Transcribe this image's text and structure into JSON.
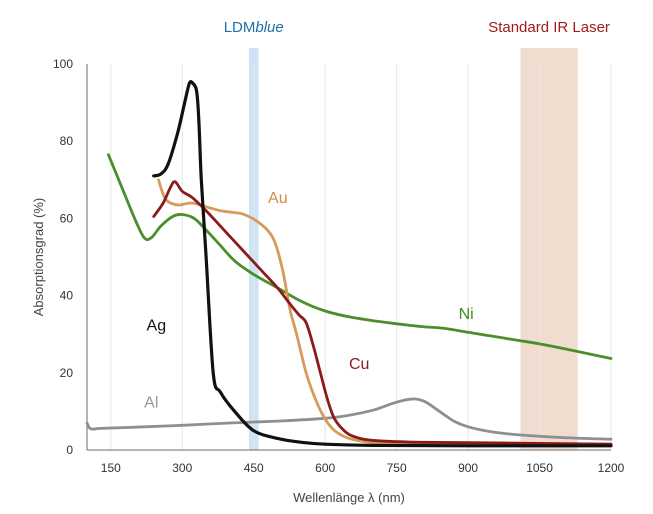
{
  "chart_data": {
    "type": "line",
    "xlabel": "Wellenlänge λ (nm)",
    "ylabel": "Absorptionsgrad (%)",
    "xlim": [
      100,
      1200
    ],
    "ylim": [
      0,
      100
    ],
    "xticks": [
      150,
      300,
      450,
      600,
      750,
      900,
      1050,
      1200
    ],
    "yticks": [
      0,
      20,
      40,
      60,
      80,
      100
    ],
    "grid": "vertical",
    "bands": [
      {
        "label_prefix": "LDM",
        "label_suffix": "blue",
        "x_from": 440,
        "x_to": 460,
        "color": "#cfe3f6",
        "label_color": "#1f6fa8"
      },
      {
        "label_prefix": "Standard IR Laser",
        "label_suffix": "",
        "x_from": 1010,
        "x_to": 1130,
        "color": "#f0ddd0",
        "label_color": "#a01b1b"
      }
    ],
    "series": [
      {
        "name": "Ag",
        "color": "#111111",
        "label_pos": [
          225,
          31
        ],
        "label_color": "#111111",
        "points": [
          [
            240,
            71
          ],
          [
            255,
            71.5
          ],
          [
            270,
            74
          ],
          [
            290,
            82
          ],
          [
            305,
            90
          ],
          [
            315,
            95
          ],
          [
            322,
            95
          ],
          [
            330,
            93
          ],
          [
            335,
            85
          ],
          [
            340,
            70
          ],
          [
            350,
            50
          ],
          [
            365,
            20
          ],
          [
            380,
            15
          ],
          [
            410,
            10
          ],
          [
            450,
            5
          ],
          [
            500,
            3
          ],
          [
            550,
            2
          ],
          [
            600,
            1.5
          ],
          [
            700,
            1.2
          ],
          [
            900,
            1.1
          ],
          [
            1200,
            1.1
          ]
        ]
      },
      {
        "name": "Au",
        "color": "#d79a5c",
        "label_pos": [
          480,
          64
        ],
        "label_color": "#d08a45",
        "points": [
          [
            250,
            70
          ],
          [
            265,
            65
          ],
          [
            290,
            63.5
          ],
          [
            320,
            64
          ],
          [
            350,
            63
          ],
          [
            380,
            62
          ],
          [
            410,
            61.5
          ],
          [
            430,
            61
          ],
          [
            460,
            59
          ],
          [
            490,
            55
          ],
          [
            510,
            47
          ],
          [
            525,
            37
          ],
          [
            540,
            30
          ],
          [
            560,
            20
          ],
          [
            580,
            13
          ],
          [
            600,
            8
          ],
          [
            620,
            5
          ],
          [
            650,
            3
          ],
          [
            700,
            2
          ],
          [
            800,
            1.8
          ],
          [
            1000,
            1.5
          ],
          [
            1200,
            1.5
          ]
        ]
      },
      {
        "name": "Cu",
        "color": "#8b1a1a",
        "label_pos": [
          650,
          21
        ],
        "label_color": "#8b1a1a",
        "points": [
          [
            240,
            60.5
          ],
          [
            260,
            64
          ],
          [
            275,
            68
          ],
          [
            285,
            69.5
          ],
          [
            300,
            67
          ],
          [
            320,
            65.5
          ],
          [
            350,
            62
          ],
          [
            380,
            58
          ],
          [
            410,
            54
          ],
          [
            440,
            50
          ],
          [
            470,
            46
          ],
          [
            500,
            42
          ],
          [
            525,
            38
          ],
          [
            545,
            35
          ],
          [
            560,
            33
          ],
          [
            575,
            27
          ],
          [
            590,
            20
          ],
          [
            605,
            13
          ],
          [
            620,
            8
          ],
          [
            640,
            5
          ],
          [
            660,
            3.5
          ],
          [
            700,
            2.5
          ],
          [
            800,
            2
          ],
          [
            1000,
            1.8
          ],
          [
            1200,
            1.5
          ]
        ]
      },
      {
        "name": "Ni",
        "color": "#4a8f2c",
        "label_pos": [
          880,
          34
        ],
        "label_color": "#3f8a25",
        "points": [
          [
            145,
            76.5
          ],
          [
            170,
            69
          ],
          [
            200,
            60
          ],
          [
            220,
            55
          ],
          [
            235,
            55
          ],
          [
            255,
            58
          ],
          [
            280,
            60.5
          ],
          [
            300,
            61
          ],
          [
            325,
            60
          ],
          [
            350,
            57
          ],
          [
            380,
            53
          ],
          [
            410,
            49
          ],
          [
            450,
            45.5
          ],
          [
            500,
            42
          ],
          [
            550,
            38.5
          ],
          [
            600,
            36
          ],
          [
            650,
            34.5
          ],
          [
            700,
            33.5
          ],
          [
            750,
            32.7
          ],
          [
            800,
            32
          ],
          [
            850,
            31.5
          ],
          [
            900,
            30.5
          ],
          [
            950,
            29.5
          ],
          [
            1000,
            28.5
          ],
          [
            1050,
            27.5
          ],
          [
            1100,
            26.3
          ],
          [
            1150,
            25
          ],
          [
            1200,
            23.7
          ]
        ]
      },
      {
        "name": "Al",
        "color": "#8f8f8f",
        "label_pos": [
          220,
          11
        ],
        "label_color": "#999999",
        "points": [
          [
            100,
            7
          ],
          [
            108,
            5.5
          ],
          [
            130,
            5.6
          ],
          [
            200,
            5.9
          ],
          [
            300,
            6.4
          ],
          [
            400,
            7
          ],
          [
            500,
            7.5
          ],
          [
            600,
            8.2
          ],
          [
            650,
            9
          ],
          [
            700,
            10.3
          ],
          [
            740,
            12
          ],
          [
            770,
            13
          ],
          [
            790,
            13.2
          ],
          [
            810,
            12.5
          ],
          [
            840,
            10
          ],
          [
            870,
            7.5
          ],
          [
            900,
            6
          ],
          [
            950,
            4.7
          ],
          [
            1000,
            4
          ],
          [
            1100,
            3.2
          ],
          [
            1200,
            2.8
          ]
        ]
      }
    ]
  }
}
